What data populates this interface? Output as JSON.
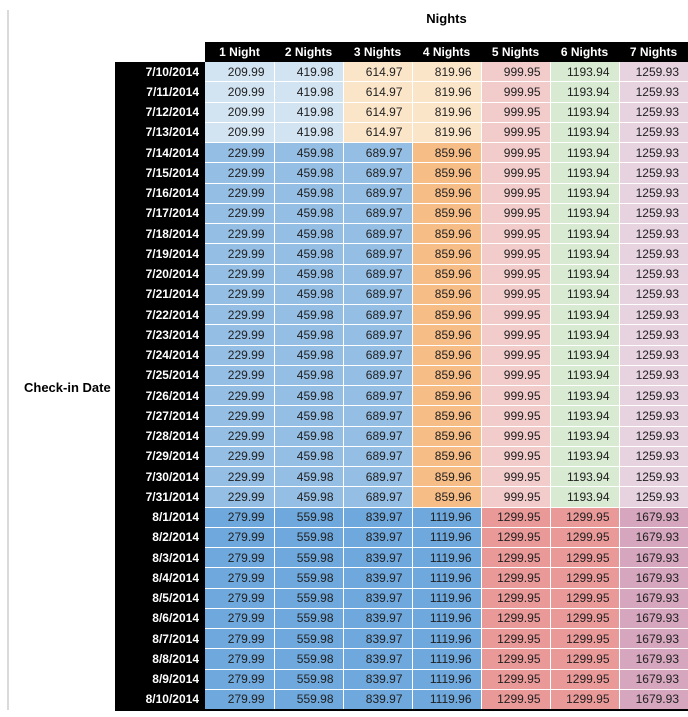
{
  "palette": {
    "header_bg": "#000000",
    "header_text": "#ffffff",
    "blue_light": "#d2e3f1",
    "blue_med": "#95bee4",
    "blue_dark": "#6fa8dc",
    "orange_light": "#fbe5c9",
    "orange_med": "#f7bd86",
    "red_light": "#f2cbcb",
    "red_med": "#ea9999",
    "green_light": "#d8ead2",
    "purple_light": "#e7d3e0",
    "purple_med": "#d5a6bd"
  },
  "chart_data": {
    "type": "table",
    "title": "Nights",
    "row_header": "Check-in Date",
    "columns": [
      "1 Night",
      "2 Nights",
      "3 Nights",
      "4 Nights",
      "5 Nights",
      "6 Nights",
      "7 Nights"
    ],
    "rows": [
      {
        "date": "7/10/2014",
        "values": [
          "209.99",
          "419.98",
          "614.97",
          "819.96",
          "999.95",
          "1193.94",
          "1259.93"
        ],
        "colors": [
          "blue_light",
          "blue_light",
          "orange_light",
          "orange_light",
          "red_light",
          "green_light",
          "purple_light"
        ]
      },
      {
        "date": "7/11/2014",
        "values": [
          "209.99",
          "419.98",
          "614.97",
          "819.96",
          "999.95",
          "1193.94",
          "1259.93"
        ],
        "colors": [
          "blue_light",
          "blue_light",
          "orange_light",
          "orange_light",
          "red_light",
          "green_light",
          "purple_light"
        ]
      },
      {
        "date": "7/12/2014",
        "values": [
          "209.99",
          "419.98",
          "614.97",
          "819.96",
          "999.95",
          "1193.94",
          "1259.93"
        ],
        "colors": [
          "blue_light",
          "blue_light",
          "orange_light",
          "orange_light",
          "red_light",
          "green_light",
          "purple_light"
        ]
      },
      {
        "date": "7/13/2014",
        "values": [
          "209.99",
          "419.98",
          "614.97",
          "819.96",
          "999.95",
          "1193.94",
          "1259.93"
        ],
        "colors": [
          "blue_light",
          "blue_light",
          "orange_light",
          "orange_light",
          "red_light",
          "green_light",
          "purple_light"
        ]
      },
      {
        "date": "7/14/2014",
        "values": [
          "229.99",
          "459.98",
          "689.97",
          "859.96",
          "999.95",
          "1193.94",
          "1259.93"
        ],
        "colors": [
          "blue_med",
          "blue_med",
          "blue_med",
          "orange_med",
          "red_light",
          "green_light",
          "purple_light"
        ]
      },
      {
        "date": "7/15/2014",
        "values": [
          "229.99",
          "459.98",
          "689.97",
          "859.96",
          "999.95",
          "1193.94",
          "1259.93"
        ],
        "colors": [
          "blue_med",
          "blue_med",
          "blue_med",
          "orange_med",
          "red_light",
          "green_light",
          "purple_light"
        ]
      },
      {
        "date": "7/16/2014",
        "values": [
          "229.99",
          "459.98",
          "689.97",
          "859.96",
          "999.95",
          "1193.94",
          "1259.93"
        ],
        "colors": [
          "blue_med",
          "blue_med",
          "blue_med",
          "orange_med",
          "red_light",
          "green_light",
          "purple_light"
        ]
      },
      {
        "date": "7/17/2014",
        "values": [
          "229.99",
          "459.98",
          "689.97",
          "859.96",
          "999.95",
          "1193.94",
          "1259.93"
        ],
        "colors": [
          "blue_med",
          "blue_med",
          "blue_med",
          "orange_med",
          "red_light",
          "green_light",
          "purple_light"
        ]
      },
      {
        "date": "7/18/2014",
        "values": [
          "229.99",
          "459.98",
          "689.97",
          "859.96",
          "999.95",
          "1193.94",
          "1259.93"
        ],
        "colors": [
          "blue_med",
          "blue_med",
          "blue_med",
          "orange_med",
          "red_light",
          "green_light",
          "purple_light"
        ]
      },
      {
        "date": "7/19/2014",
        "values": [
          "229.99",
          "459.98",
          "689.97",
          "859.96",
          "999.95",
          "1193.94",
          "1259.93"
        ],
        "colors": [
          "blue_med",
          "blue_med",
          "blue_med",
          "orange_med",
          "red_light",
          "green_light",
          "purple_light"
        ]
      },
      {
        "date": "7/20/2014",
        "values": [
          "229.99",
          "459.98",
          "689.97",
          "859.96",
          "999.95",
          "1193.94",
          "1259.93"
        ],
        "colors": [
          "blue_med",
          "blue_med",
          "blue_med",
          "orange_med",
          "red_light",
          "green_light",
          "purple_light"
        ]
      },
      {
        "date": "7/21/2014",
        "values": [
          "229.99",
          "459.98",
          "689.97",
          "859.96",
          "999.95",
          "1193.94",
          "1259.93"
        ],
        "colors": [
          "blue_med",
          "blue_med",
          "blue_med",
          "orange_med",
          "red_light",
          "green_light",
          "purple_light"
        ]
      },
      {
        "date": "7/22/2014",
        "values": [
          "229.99",
          "459.98",
          "689.97",
          "859.96",
          "999.95",
          "1193.94",
          "1259.93"
        ],
        "colors": [
          "blue_med",
          "blue_med",
          "blue_med",
          "orange_med",
          "red_light",
          "green_light",
          "purple_light"
        ]
      },
      {
        "date": "7/23/2014",
        "values": [
          "229.99",
          "459.98",
          "689.97",
          "859.96",
          "999.95",
          "1193.94",
          "1259.93"
        ],
        "colors": [
          "blue_med",
          "blue_med",
          "blue_med",
          "orange_med",
          "red_light",
          "green_light",
          "purple_light"
        ]
      },
      {
        "date": "7/24/2014",
        "values": [
          "229.99",
          "459.98",
          "689.97",
          "859.96",
          "999.95",
          "1193.94",
          "1259.93"
        ],
        "colors": [
          "blue_med",
          "blue_med",
          "blue_med",
          "orange_med",
          "red_light",
          "green_light",
          "purple_light"
        ]
      },
      {
        "date": "7/25/2014",
        "values": [
          "229.99",
          "459.98",
          "689.97",
          "859.96",
          "999.95",
          "1193.94",
          "1259.93"
        ],
        "colors": [
          "blue_med",
          "blue_med",
          "blue_med",
          "orange_med",
          "red_light",
          "green_light",
          "purple_light"
        ]
      },
      {
        "date": "7/26/2014",
        "values": [
          "229.99",
          "459.98",
          "689.97",
          "859.96",
          "999.95",
          "1193.94",
          "1259.93"
        ],
        "colors": [
          "blue_med",
          "blue_med",
          "blue_med",
          "orange_med",
          "red_light",
          "green_light",
          "purple_light"
        ]
      },
      {
        "date": "7/27/2014",
        "values": [
          "229.99",
          "459.98",
          "689.97",
          "859.96",
          "999.95",
          "1193.94",
          "1259.93"
        ],
        "colors": [
          "blue_med",
          "blue_med",
          "blue_med",
          "orange_med",
          "red_light",
          "green_light",
          "purple_light"
        ]
      },
      {
        "date": "7/28/2014",
        "values": [
          "229.99",
          "459.98",
          "689.97",
          "859.96",
          "999.95",
          "1193.94",
          "1259.93"
        ],
        "colors": [
          "blue_med",
          "blue_med",
          "blue_med",
          "orange_med",
          "red_light",
          "green_light",
          "purple_light"
        ]
      },
      {
        "date": "7/29/2014",
        "values": [
          "229.99",
          "459.98",
          "689.97",
          "859.96",
          "999.95",
          "1193.94",
          "1259.93"
        ],
        "colors": [
          "blue_med",
          "blue_med",
          "blue_med",
          "orange_med",
          "red_light",
          "green_light",
          "purple_light"
        ]
      },
      {
        "date": "7/30/2014",
        "values": [
          "229.99",
          "459.98",
          "689.97",
          "859.96",
          "999.95",
          "1193.94",
          "1259.93"
        ],
        "colors": [
          "blue_med",
          "blue_med",
          "blue_med",
          "orange_med",
          "red_light",
          "green_light",
          "purple_light"
        ]
      },
      {
        "date": "7/31/2014",
        "values": [
          "229.99",
          "459.98",
          "689.97",
          "859.96",
          "999.95",
          "1193.94",
          "1259.93"
        ],
        "colors": [
          "blue_med",
          "blue_med",
          "blue_med",
          "orange_med",
          "red_light",
          "green_light",
          "purple_light"
        ]
      },
      {
        "date": "8/1/2014",
        "values": [
          "279.99",
          "559.98",
          "839.97",
          "1119.96",
          "1299.95",
          "1299.95",
          "1679.93"
        ],
        "colors": [
          "blue_dark",
          "blue_dark",
          "blue_dark",
          "blue_dark",
          "red_med",
          "red_med",
          "purple_med"
        ]
      },
      {
        "date": "8/2/2014",
        "values": [
          "279.99",
          "559.98",
          "839.97",
          "1119.96",
          "1299.95",
          "1299.95",
          "1679.93"
        ],
        "colors": [
          "blue_dark",
          "blue_dark",
          "blue_dark",
          "blue_dark",
          "red_med",
          "red_med",
          "purple_med"
        ]
      },
      {
        "date": "8/3/2014",
        "values": [
          "279.99",
          "559.98",
          "839.97",
          "1119.96",
          "1299.95",
          "1299.95",
          "1679.93"
        ],
        "colors": [
          "blue_dark",
          "blue_dark",
          "blue_dark",
          "blue_dark",
          "red_med",
          "red_med",
          "purple_med"
        ]
      },
      {
        "date": "8/4/2014",
        "values": [
          "279.99",
          "559.98",
          "839.97",
          "1119.96",
          "1299.95",
          "1299.95",
          "1679.93"
        ],
        "colors": [
          "blue_dark",
          "blue_dark",
          "blue_dark",
          "blue_dark",
          "red_med",
          "red_med",
          "purple_med"
        ]
      },
      {
        "date": "8/5/2014",
        "values": [
          "279.99",
          "559.98",
          "839.97",
          "1119.96",
          "1299.95",
          "1299.95",
          "1679.93"
        ],
        "colors": [
          "blue_dark",
          "blue_dark",
          "blue_dark",
          "blue_dark",
          "red_med",
          "red_med",
          "purple_med"
        ]
      },
      {
        "date": "8/6/2014",
        "values": [
          "279.99",
          "559.98",
          "839.97",
          "1119.96",
          "1299.95",
          "1299.95",
          "1679.93"
        ],
        "colors": [
          "blue_dark",
          "blue_dark",
          "blue_dark",
          "blue_dark",
          "red_med",
          "red_med",
          "purple_med"
        ]
      },
      {
        "date": "8/7/2014",
        "values": [
          "279.99",
          "559.98",
          "839.97",
          "1119.96",
          "1299.95",
          "1299.95",
          "1679.93"
        ],
        "colors": [
          "blue_dark",
          "blue_dark",
          "blue_dark",
          "blue_dark",
          "red_med",
          "red_med",
          "purple_med"
        ]
      },
      {
        "date": "8/8/2014",
        "values": [
          "279.99",
          "559.98",
          "839.97",
          "1119.96",
          "1299.95",
          "1299.95",
          "1679.93"
        ],
        "colors": [
          "blue_dark",
          "blue_dark",
          "blue_dark",
          "blue_dark",
          "red_med",
          "red_med",
          "purple_med"
        ]
      },
      {
        "date": "8/9/2014",
        "values": [
          "279.99",
          "559.98",
          "839.97",
          "1119.96",
          "1299.95",
          "1299.95",
          "1679.93"
        ],
        "colors": [
          "blue_dark",
          "blue_dark",
          "blue_dark",
          "blue_dark",
          "red_med",
          "red_med",
          "purple_med"
        ]
      },
      {
        "date": "8/10/2014",
        "values": [
          "279.99",
          "559.98",
          "839.97",
          "1119.96",
          "1299.95",
          "1299.95",
          "1679.93"
        ],
        "colors": [
          "blue_dark",
          "blue_dark",
          "blue_dark",
          "blue_dark",
          "red_med",
          "red_med",
          "purple_med"
        ]
      }
    ]
  }
}
